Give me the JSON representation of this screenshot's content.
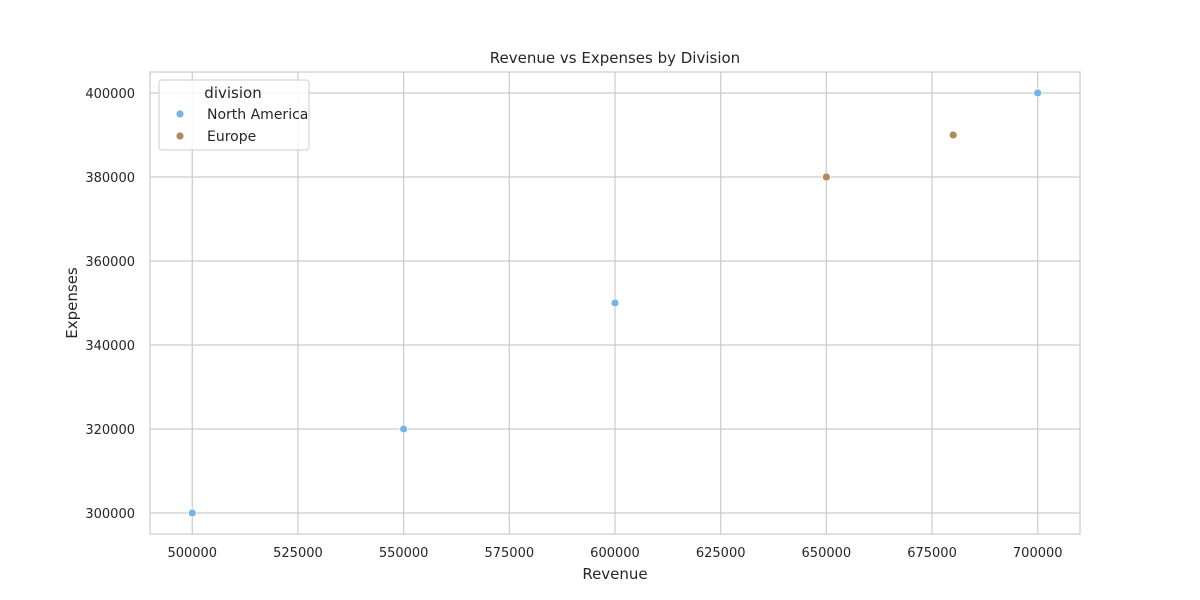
{
  "chart_data": {
    "type": "scatter",
    "title": "Revenue vs Expenses by Division",
    "xlabel": "Revenue",
    "ylabel": "Expenses",
    "xlim": [
      490000,
      710000
    ],
    "ylim": [
      295000,
      405000
    ],
    "x_ticks": [
      500000,
      525000,
      550000,
      575000,
      600000,
      625000,
      650000,
      675000,
      700000
    ],
    "y_ticks": [
      300000,
      320000,
      340000,
      360000,
      380000,
      400000
    ],
    "grid": true,
    "legend": {
      "title": "division",
      "placement": "top-left"
    },
    "series": [
      {
        "name": "North America",
        "color": "#74b4e6",
        "points": [
          {
            "x": 500000,
            "y": 300000
          },
          {
            "x": 550000,
            "y": 320000
          },
          {
            "x": 600000,
            "y": 350000
          },
          {
            "x": 700000,
            "y": 400000
          }
        ]
      },
      {
        "name": "Europe",
        "color": "#ae8a5e",
        "points": [
          {
            "x": 650000,
            "y": 380000
          },
          {
            "x": 680000,
            "y": 390000
          }
        ]
      }
    ]
  }
}
